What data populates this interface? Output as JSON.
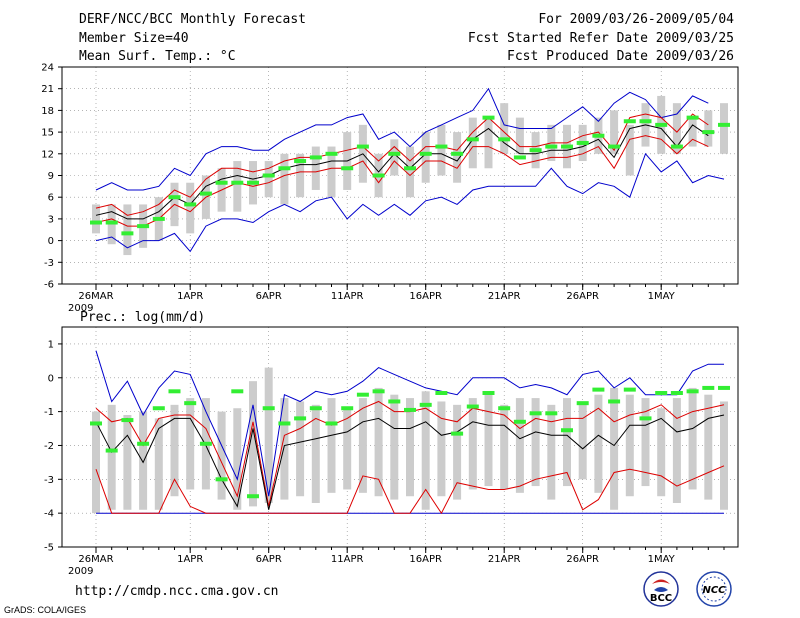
{
  "header": {
    "title": "DERF/NCC/BCC Monthly Forecast",
    "member_size": "Member Size=40",
    "variable": "Mean Surf. Temp.: °C",
    "period": "For 2009/03/26-2009/05/04",
    "started": "Fcst Started Refer Date 2009/03/25",
    "produced": "Fcst Produced Date 2009/03/26"
  },
  "footer": {
    "url": "http://cmdp.ncc.cma.gov.cn",
    "grads": "GrADS: COLA/IGES",
    "logo_bcc": "BCC",
    "logo_ncc": "NCC"
  },
  "colors": {
    "bar": "#cccccc",
    "median": "#33ee33",
    "mean": "#000000",
    "spread": "#dd0000",
    "range": "#0000cc"
  },
  "chart_data": [
    {
      "type": "line",
      "title": "Mean Surf. Temp.: °C",
      "ylim": [
        -6,
        24
      ],
      "yticks": [
        -6,
        -3,
        0,
        3,
        6,
        9,
        12,
        15,
        18,
        21,
        24
      ],
      "x_tick_labels": [
        {
          "day": 0,
          "label": "26MAR"
        },
        {
          "day": 6,
          "label": "1APR"
        },
        {
          "day": 11,
          "label": "6APR"
        },
        {
          "day": 16,
          "label": "11APR"
        },
        {
          "day": 21,
          "label": "16APR"
        },
        {
          "day": 26,
          "label": "21APR"
        },
        {
          "day": 31,
          "label": "26APR"
        },
        {
          "day": 36,
          "label": "1MAY"
        }
      ],
      "year_label": "2009",
      "box_low": [
        1,
        -0.5,
        -2,
        -1,
        0,
        2,
        1,
        3,
        4,
        4,
        5,
        6,
        5,
        6,
        7,
        6,
        7,
        8,
        6,
        9,
        6,
        8,
        9,
        8,
        10,
        10,
        12,
        12,
        10,
        11,
        10,
        11,
        12,
        12,
        9,
        13,
        12,
        12,
        13,
        13,
        12
      ],
      "box_high": [
        5,
        5,
        5,
        5,
        6,
        8,
        8,
        9,
        10,
        11,
        11,
        11,
        12,
        12,
        13,
        13,
        15,
        16,
        12,
        14,
        13,
        15,
        16,
        15,
        17,
        17,
        19,
        17,
        15,
        16,
        16,
        16,
        17,
        18,
        16,
        19,
        20,
        19,
        17,
        18,
        19
      ],
      "max": [
        7,
        8,
        7,
        7,
        7.5,
        10,
        9,
        12,
        13,
        13,
        12.5,
        12.5,
        14,
        15,
        16,
        16,
        17,
        17.5,
        14,
        15,
        13,
        15,
        16,
        17,
        18,
        21,
        16,
        15.5,
        15.5,
        15.5,
        17,
        18.5,
        16.5,
        19,
        20.5,
        19.5,
        17,
        17.5,
        20,
        19,
        null
      ],
      "upper": [
        4.5,
        5,
        3.5,
        4,
        5,
        7,
        6,
        8.5,
        10,
        10,
        9.5,
        10,
        11,
        11.5,
        11.5,
        12,
        12.5,
        13,
        11,
        13,
        11,
        13,
        13,
        12.5,
        15,
        17,
        15,
        13,
        13,
        13.5,
        13.5,
        14.5,
        15,
        12.5,
        17,
        17.5,
        17,
        15,
        17.5,
        16,
        null
      ],
      "mean": [
        3.5,
        4,
        3,
        3,
        4,
        6,
        5,
        7.5,
        8.5,
        9,
        8.5,
        9,
        10,
        10.5,
        10.5,
        11,
        11,
        12,
        9.5,
        12,
        10,
        12,
        12,
        11,
        14,
        15.5,
        13.5,
        12,
        12,
        12.5,
        12.5,
        13,
        14,
        11.5,
        15.5,
        16,
        15.5,
        13,
        16,
        14.5,
        null
      ],
      "lower": [
        2.5,
        3,
        2,
        2,
        3,
        5,
        4,
        6,
        7,
        8,
        7.5,
        8,
        9,
        9.5,
        9.5,
        10,
        10,
        11,
        8,
        11,
        9,
        11,
        11,
        10,
        13,
        13,
        12,
        10.5,
        11,
        11.5,
        11.5,
        12,
        13,
        10,
        14,
        14.5,
        14,
        12,
        14,
        13,
        null
      ],
      "min": [
        0,
        0.5,
        -1,
        0,
        0,
        1,
        -1.5,
        2,
        3,
        3,
        2.5,
        4,
        5,
        4,
        5.5,
        6,
        3,
        5,
        3.5,
        5,
        3.5,
        5.5,
        6,
        5,
        7,
        7.5,
        7.5,
        7.5,
        7.5,
        10,
        7.5,
        6.5,
        8,
        7.5,
        6,
        12,
        9.5,
        11,
        8,
        9,
        8.5
      ],
      "median": [
        2.5,
        2.5,
        1,
        2,
        3,
        6,
        5,
        6.5,
        8,
        8,
        8,
        9,
        10,
        11,
        11.5,
        12,
        10,
        13,
        9,
        12,
        10,
        12,
        13,
        12,
        14,
        17,
        14,
        11.5,
        12.5,
        13,
        13,
        13.5,
        14.5,
        13,
        16.5,
        16.5,
        16,
        13,
        17,
        15,
        16
      ]
    },
    {
      "type": "line",
      "title": "Prec.: log(mm/d)",
      "ylim": [
        -5,
        1.5
      ],
      "yticks": [
        -5,
        -4,
        -3,
        -2,
        -1,
        0,
        1
      ],
      "x_tick_labels": [
        {
          "day": 0,
          "label": "26MAR"
        },
        {
          "day": 6,
          "label": "1APR"
        },
        {
          "day": 11,
          "label": "6APR"
        },
        {
          "day": 16,
          "label": "11APR"
        },
        {
          "day": 21,
          "label": "16APR"
        },
        {
          "day": 26,
          "label": "21APR"
        },
        {
          "day": 31,
          "label": "26APR"
        },
        {
          "day": 36,
          "label": "1MAY"
        }
      ],
      "year_label": "2009",
      "box_low": [
        -4,
        -3.9,
        -3.9,
        -3.9,
        -3.9,
        -3.5,
        -3.3,
        -3.3,
        -3.6,
        -3.9,
        -3.8,
        -3.7,
        -3.6,
        -3.5,
        -3.7,
        -3.4,
        -3.3,
        -3.4,
        -3.5,
        -3.6,
        -3.5,
        -3.9,
        -3.5,
        -3.6,
        -3.3,
        -3.2,
        -3.3,
        -3.4,
        -3.2,
        -3.6,
        -3.2,
        -3.0,
        -3.4,
        -3.9,
        -3.5,
        -3.2,
        -3.5,
        -3.7,
        -3.3,
        -3.6,
        -3.9
      ],
      "box_high": [
        -1,
        -0.8,
        -1.1,
        -1.0,
        -1.2,
        -0.8,
        -0.6,
        -0.6,
        -1.0,
        -0.9,
        -0.1,
        0.3,
        -0.6,
        -0.7,
        -0.8,
        -0.6,
        -0.9,
        -0.6,
        -0.3,
        -0.5,
        -0.6,
        -0.4,
        -0.7,
        -0.8,
        -0.6,
        -0.4,
        -0.8,
        -0.6,
        -0.6,
        -0.8,
        -0.6,
        -0.7,
        -0.5,
        -0.3,
        -0.5,
        -0.6,
        -0.9,
        -0.6,
        -0.3,
        -0.5,
        -0.7
      ],
      "max": [
        0.8,
        -0.7,
        -0.1,
        -1.1,
        -0.3,
        0.2,
        0.1,
        -1,
        -2,
        -3,
        -0.8,
        -3.5,
        -0.5,
        -0.7,
        -0.4,
        -0.5,
        -0.4,
        -0.1,
        0.3,
        0.1,
        -0.1,
        -0.3,
        -0.4,
        -0.5,
        0,
        0,
        0,
        -0.3,
        -0.2,
        -0.3,
        -0.5,
        0.1,
        0.2,
        -0.3,
        0,
        -0.5,
        -0.5,
        -0.5,
        0.2,
        0.4,
        0.4
      ],
      "upper": [
        -0.9,
        -1.3,
        -1.2,
        -2.0,
        -1.2,
        -1.1,
        -1.1,
        -1.5,
        -2.5,
        -3.5,
        -1.3,
        -3.8,
        -1.7,
        -1.5,
        -1.2,
        -1.4,
        -1.2,
        -0.9,
        -0.7,
        -1.0,
        -1.0,
        -0.9,
        -1.2,
        -1.3,
        -0.9,
        -1.0,
        -1.1,
        -1.5,
        -1.2,
        -1.3,
        -1.2,
        -1.2,
        -0.9,
        -1.3,
        -1.1,
        -1.0,
        -0.8,
        -1.2,
        -1.0,
        -0.9,
        -0.8
      ],
      "mean": [
        -1.3,
        -2.2,
        -1.7,
        -2.5,
        -1.5,
        -1.2,
        -1.2,
        -2.0,
        -3.0,
        -3.8,
        -1.5,
        -3.9,
        -2.0,
        -1.9,
        -1.8,
        -1.7,
        -1.6,
        -1.3,
        -1.2,
        -1.5,
        -1.5,
        -1.3,
        -1.7,
        -1.6,
        -1.3,
        -1.4,
        -1.4,
        -1.8,
        -1.6,
        -1.7,
        -1.7,
        -2.1,
        -1.7,
        -2.0,
        -1.4,
        -1.4,
        -1.2,
        -1.6,
        -1.5,
        -1.2,
        -1.1
      ],
      "lower": [
        -2.7,
        -4,
        -4,
        -4,
        -4,
        -3,
        -3.8,
        -4,
        -4,
        -4,
        -4,
        -4,
        -4,
        -4,
        -4,
        -4,
        -4,
        -2.9,
        -3.0,
        -4,
        -4,
        -3.3,
        -4,
        -3.1,
        -3.2,
        -3.3,
        -3.3,
        -3.2,
        -3.0,
        -2.9,
        -2.8,
        -3.9,
        -3.6,
        -2.8,
        -2.7,
        -2.8,
        -2.9,
        -3.2,
        -3.0,
        -2.8,
        -2.6
      ],
      "min": [
        -4,
        -4,
        -4,
        -4,
        -4,
        -4,
        -4,
        -4,
        -4,
        -4,
        -4,
        -4,
        -4,
        -4,
        -4,
        -4,
        -4,
        -4,
        -4,
        -4,
        -4,
        -4,
        -4,
        -4,
        -4,
        -4,
        -4,
        -4,
        -4,
        -4,
        -4,
        -4,
        -4,
        -4,
        -4,
        -4,
        -4,
        -4,
        -4,
        -4,
        -4
      ],
      "median": [
        -1.35,
        -2.15,
        -1.25,
        -1.95,
        -0.9,
        -0.4,
        -0.75,
        -1.95,
        -3.0,
        -0.4,
        -3.5,
        -0.9,
        -1.35,
        -1.2,
        -0.9,
        -1.35,
        -0.9,
        -0.5,
        -0.4,
        -0.7,
        -0.95,
        -0.8,
        -0.45,
        -1.65,
        -0.85,
        -0.45,
        -0.9,
        -1.3,
        -1.05,
        -1.05,
        -1.55,
        -0.75,
        -0.35,
        -0.7,
        -0.35,
        -1.2,
        -0.45,
        -0.45,
        -0.4,
        -0.3,
        -0.3
      ]
    }
  ]
}
